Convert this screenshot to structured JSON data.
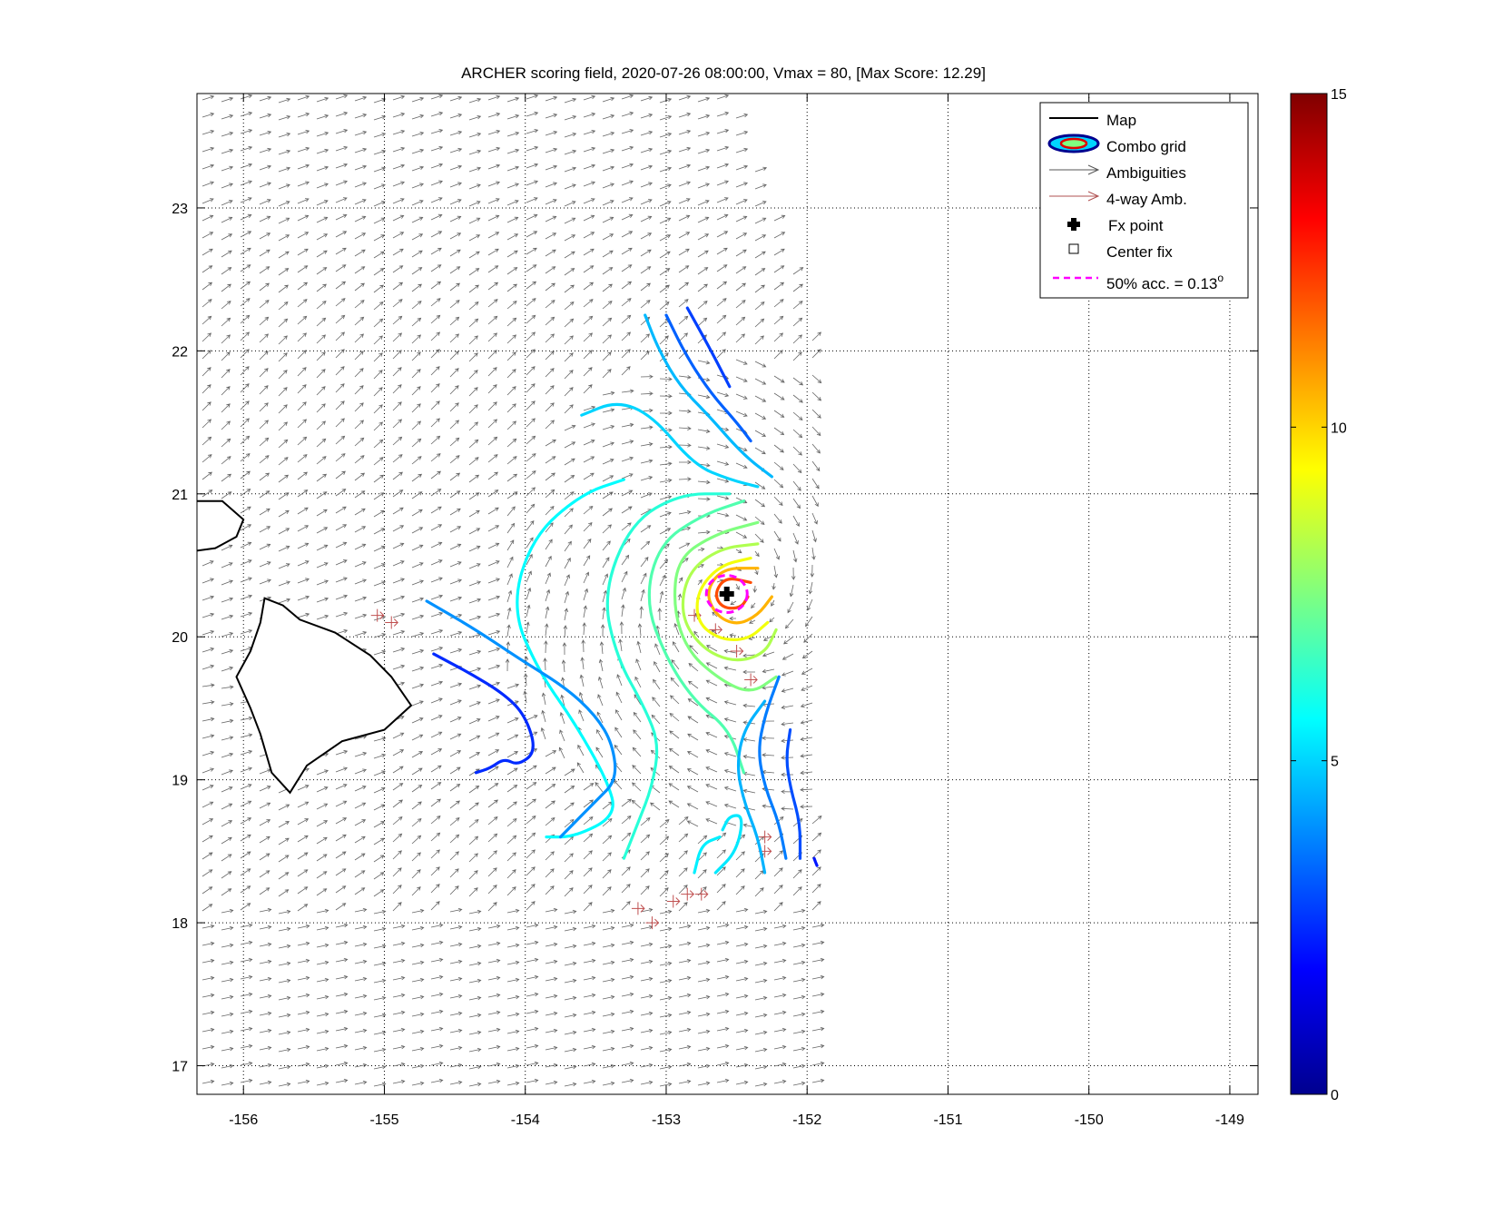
{
  "chart_data": {
    "type": "contour",
    "title": "ARCHER scoring field, 2020-07-26 08:00:00, Vmax = 80, [Max Score: 12.29]",
    "xlabel": "",
    "ylabel": "",
    "xlim": [
      -156.33,
      -148.8
    ],
    "ylim": [
      16.8,
      23.8
    ],
    "xticks": [
      "-156",
      "-155",
      "-154",
      "-153",
      "-152",
      "-151",
      "-150",
      "-149"
    ],
    "yticks": [
      "17",
      "18",
      "19",
      "20",
      "21",
      "22",
      "23"
    ],
    "grid": true,
    "legend": {
      "placement": "top-right",
      "entries": [
        "Map",
        "Combo grid",
        "Ambiguities",
        "4-way Amb.",
        "Fx point",
        "Center fix",
        "50% acc. = 0.13"
      ],
      "acc_superscript": "o"
    },
    "colorbar": {
      "min": 0,
      "max": 15,
      "ticks": [
        "0",
        "5",
        "10",
        "15"
      ],
      "colormap": "jet"
    },
    "max_score": 12.29,
    "fix_point": {
      "lon": -152.57,
      "lat": 20.3
    },
    "accuracy_radius_deg": 0.13,
    "contours": [
      {
        "level": 2.8,
        "points": [
          [
            -152.85,
            22.3
          ],
          [
            -152.68,
            22.0
          ],
          [
            -152.55,
            21.75
          ]
        ]
      },
      {
        "level": 3.3,
        "points": [
          [
            -153.0,
            22.25
          ],
          [
            -152.85,
            21.95
          ],
          [
            -152.68,
            21.7
          ],
          [
            -152.5,
            21.5
          ],
          [
            -152.4,
            21.37
          ]
        ]
      },
      {
        "level": 4.6,
        "points": [
          [
            -153.15,
            22.25
          ],
          [
            -153.05,
            22.0
          ],
          [
            -152.9,
            21.75
          ],
          [
            -152.7,
            21.55
          ],
          [
            -152.45,
            21.27
          ],
          [
            -152.25,
            21.12
          ]
        ]
      },
      {
        "level": 5.0,
        "points": [
          [
            -153.6,
            21.55
          ],
          [
            -153.35,
            21.65
          ],
          [
            -153.1,
            21.55
          ],
          [
            -152.8,
            21.2
          ],
          [
            -152.55,
            21.1
          ],
          [
            -152.35,
            21.05
          ]
        ]
      },
      {
        "level": 5.6,
        "points": [
          [
            -153.3,
            21.1
          ],
          [
            -153.6,
            21.0
          ],
          [
            -153.95,
            20.7
          ],
          [
            -154.1,
            20.2
          ],
          [
            -153.9,
            19.75
          ],
          [
            -153.65,
            19.4
          ],
          [
            -153.42,
            19.0
          ],
          [
            -153.35,
            18.75
          ],
          [
            -153.65,
            18.6
          ],
          [
            -153.85,
            18.6
          ]
        ]
      },
      {
        "level": 6.2,
        "points": [
          [
            -152.55,
            21.0
          ],
          [
            -152.9,
            21.0
          ],
          [
            -153.25,
            20.8
          ],
          [
            -153.45,
            20.3
          ],
          [
            -153.35,
            19.85
          ],
          [
            -153.15,
            19.5
          ],
          [
            -153.05,
            19.25
          ],
          [
            -153.1,
            18.95
          ],
          [
            -153.2,
            18.7
          ],
          [
            -153.3,
            18.45
          ]
        ]
      },
      {
        "level": 6.8,
        "points": [
          [
            -152.45,
            20.95
          ],
          [
            -152.75,
            20.85
          ],
          [
            -153.05,
            20.65
          ],
          [
            -153.15,
            20.25
          ],
          [
            -153.0,
            19.85
          ],
          [
            -152.8,
            19.55
          ],
          [
            -152.55,
            19.35
          ],
          [
            -152.45,
            19.05
          ]
        ]
      },
      {
        "level": 7.5,
        "points": [
          [
            -152.35,
            20.8
          ],
          [
            -152.65,
            20.72
          ],
          [
            -152.92,
            20.55
          ],
          [
            -152.95,
            20.2
          ],
          [
            -152.85,
            19.9
          ],
          [
            -152.62,
            19.7
          ],
          [
            -152.4,
            19.6
          ],
          [
            -152.22,
            19.72
          ]
        ]
      },
      {
        "level": 8.2,
        "points": [
          [
            -152.35,
            20.65
          ],
          [
            -152.62,
            20.62
          ],
          [
            -152.85,
            20.45
          ],
          [
            -152.9,
            20.15
          ],
          [
            -152.75,
            19.92
          ],
          [
            -152.52,
            19.82
          ],
          [
            -152.3,
            19.88
          ],
          [
            -152.22,
            20.05
          ]
        ]
      },
      {
        "level": 9.2,
        "points": [
          [
            -152.4,
            20.55
          ],
          [
            -152.62,
            20.5
          ],
          [
            -152.78,
            20.32
          ],
          [
            -152.78,
            20.1
          ],
          [
            -152.62,
            19.98
          ],
          [
            -152.42,
            19.98
          ],
          [
            -152.28,
            20.1
          ]
        ]
      },
      {
        "level": 10.5,
        "points": [
          [
            -152.35,
            20.48
          ],
          [
            -152.6,
            20.48
          ],
          [
            -152.72,
            20.32
          ],
          [
            -152.65,
            20.15
          ],
          [
            -152.5,
            20.08
          ],
          [
            -152.35,
            20.15
          ],
          [
            -152.25,
            20.28
          ]
        ]
      },
      {
        "level": 12.0,
        "points": [
          [
            -152.4,
            20.38
          ],
          [
            -152.58,
            20.42
          ],
          [
            -152.66,
            20.3
          ],
          [
            -152.6,
            20.2
          ],
          [
            -152.47,
            20.2
          ],
          [
            -152.42,
            20.28
          ]
        ]
      },
      {
        "level": 2.5,
        "points": [
          [
            -154.65,
            19.88
          ],
          [
            -154.4,
            19.75
          ],
          [
            -154.15,
            19.6
          ],
          [
            -154.0,
            19.45
          ],
          [
            -153.92,
            19.2
          ],
          [
            -154.05,
            19.1
          ],
          [
            -154.15,
            19.15
          ],
          [
            -154.25,
            19.08
          ],
          [
            -154.35,
            19.05
          ]
        ]
      },
      {
        "level": 4.0,
        "points": [
          [
            -154.7,
            20.25
          ],
          [
            -154.35,
            20.05
          ],
          [
            -154.05,
            19.85
          ],
          [
            -153.72,
            19.65
          ],
          [
            -153.5,
            19.45
          ],
          [
            -153.38,
            19.25
          ],
          [
            -153.35,
            19.0
          ],
          [
            -153.5,
            18.85
          ],
          [
            -153.75,
            18.6
          ]
        ]
      },
      {
        "level": 3.7,
        "points": [
          [
            -152.15,
            18.45
          ],
          [
            -152.2,
            18.7
          ],
          [
            -152.3,
            18.95
          ],
          [
            -152.35,
            19.2
          ],
          [
            -152.3,
            19.45
          ],
          [
            -152.2,
            19.72
          ]
        ]
      },
      {
        "level": 3.0,
        "points": [
          [
            -152.05,
            18.45
          ],
          [
            -152.05,
            18.7
          ],
          [
            -152.12,
            18.95
          ],
          [
            -152.15,
            19.15
          ],
          [
            -152.12,
            19.35
          ]
        ]
      },
      {
        "level": 4.5,
        "points": [
          [
            -152.3,
            18.35
          ],
          [
            -152.35,
            18.6
          ],
          [
            -152.45,
            18.85
          ],
          [
            -152.5,
            19.1
          ],
          [
            -152.45,
            19.35
          ],
          [
            -152.3,
            19.55
          ]
        ]
      },
      {
        "level": 5.3,
        "points": [
          [
            -152.65,
            18.35
          ],
          [
            -152.5,
            18.5
          ],
          [
            -152.45,
            18.75
          ],
          [
            -152.55,
            18.75
          ],
          [
            -152.6,
            18.65
          ]
        ]
      },
      {
        "level": 5.4,
        "points": [
          [
            -152.8,
            18.35
          ],
          [
            -152.75,
            18.55
          ],
          [
            -152.62,
            18.6
          ]
        ]
      },
      {
        "level": 2.2,
        "points": [
          [
            -151.95,
            18.45
          ],
          [
            -151.93,
            18.4
          ]
        ]
      }
    ]
  }
}
